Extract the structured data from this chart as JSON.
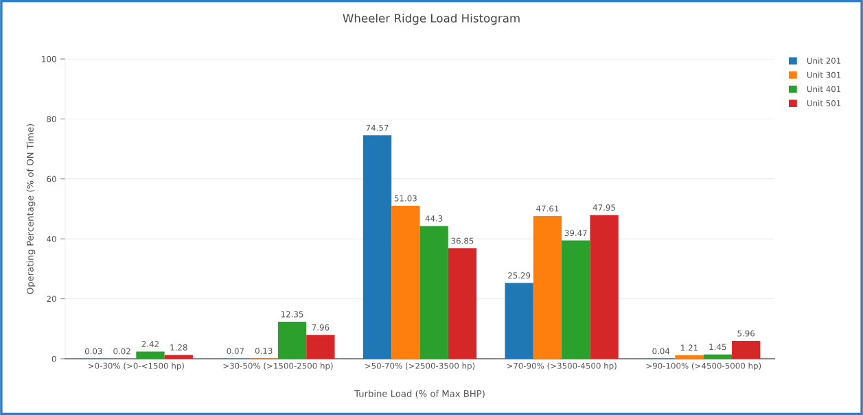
{
  "chart_data": {
    "type": "bar",
    "title": "Wheeler Ridge Load Histogram",
    "xlabel": "Turbine Load (% of Max BHP)",
    "ylabel": "Operating Percentage (% of ON Time)",
    "categories": [
      ">0-30% (>0-<1500 hp)",
      ">30-50% (>1500-2500 hp)",
      ">50-70% (>2500-3500 hp)",
      ">70-90% (>3500-4500 hp)",
      ">90-100% (>4500-5000 hp)"
    ],
    "series": [
      {
        "name": "Unit 201",
        "color": "#1f77b4",
        "values": [
          0.03,
          0.07,
          74.57,
          25.29,
          0.04
        ]
      },
      {
        "name": "Unit 301",
        "color": "#ff7f0e",
        "values": [
          0.02,
          0.13,
          51.03,
          47.61,
          1.21
        ]
      },
      {
        "name": "Unit 401",
        "color": "#2ca02c",
        "values": [
          2.42,
          12.35,
          44.3,
          39.47,
          1.45
        ]
      },
      {
        "name": "Unit 501",
        "color": "#d62728",
        "values": [
          1.28,
          7.96,
          36.85,
          47.95,
          5.96
        ]
      }
    ],
    "ylim": [
      0,
      100
    ],
    "yticks": [
      0,
      20,
      40,
      60,
      80,
      100
    ],
    "grid": "y",
    "legend": "top right",
    "data_labels": true
  }
}
